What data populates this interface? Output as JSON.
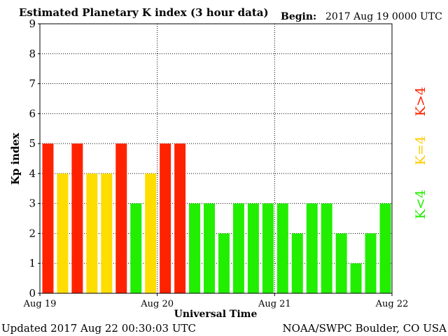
{
  "header": {
    "title": "Estimated Planetary K index (3 hour data)",
    "begin_label": "Begin:",
    "begin_value": "2017 Aug 19 0000 UTC"
  },
  "footer": {
    "updated": "Updated 2017 Aug 22 00:30:03 UTC",
    "credit": "NOAA/SWPC Boulder, CO USA"
  },
  "legend": {
    "above": "K>4",
    "equal": "K=4",
    "below": "K<4"
  },
  "colors": {
    "above": "#ff2200",
    "equal": "#ffdd00",
    "below": "#22ee00",
    "legend_equal_text": "#ffcc00",
    "grid": "#000000"
  },
  "chart_data": {
    "type": "bar",
    "xlabel": "Universal Time",
    "ylabel": "Kp index",
    "ylim": [
      0,
      9
    ],
    "yticks": [
      "0",
      "1",
      "2",
      "3",
      "4",
      "5",
      "6",
      "7",
      "8",
      "9"
    ],
    "xticks": [
      "Aug 19",
      "Aug 20",
      "Aug 21",
      "Aug 22"
    ],
    "grid": true,
    "interval_hours": 3,
    "values": [
      5,
      4,
      5,
      4,
      4,
      5,
      3,
      4,
      5,
      5,
      3,
      3,
      2,
      3,
      3,
      3,
      3,
      2,
      3,
      3,
      2,
      1,
      2,
      3
    ]
  }
}
